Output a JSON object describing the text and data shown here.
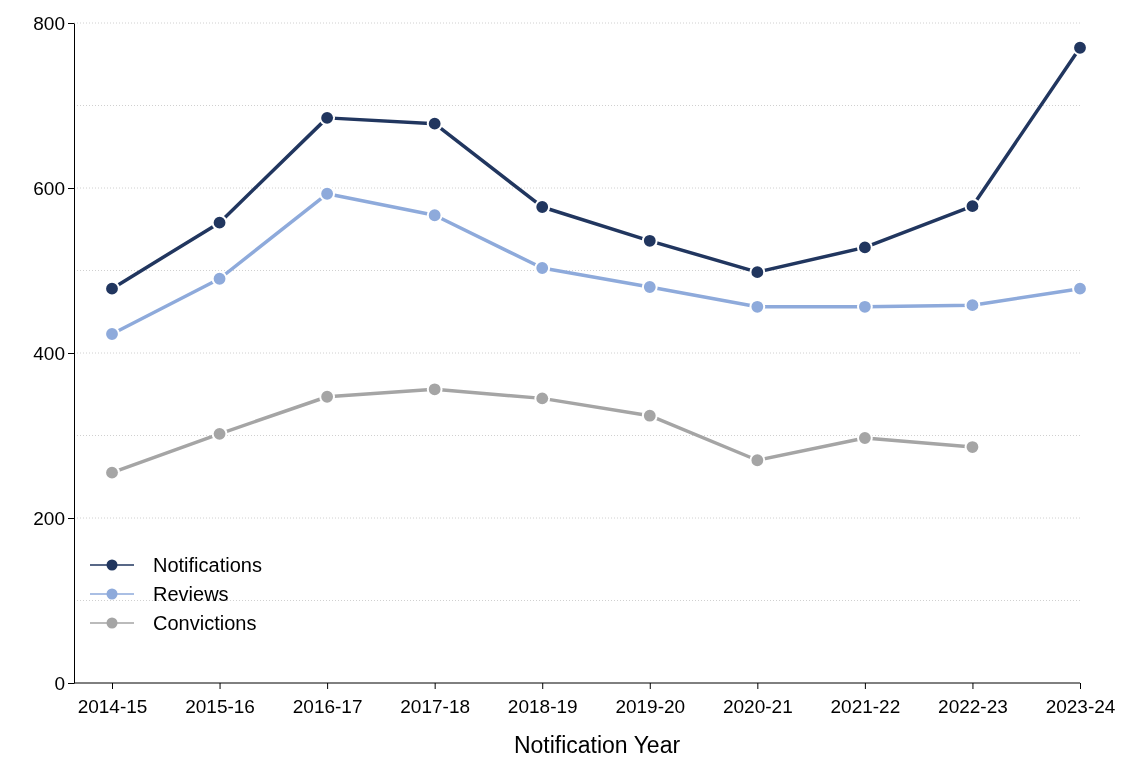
{
  "chart_data": {
    "type": "line",
    "xlabel": "Notification Year",
    "categories": [
      "2014-15",
      "2015-16",
      "2016-17",
      "2017-18",
      "2018-19",
      "2019-20",
      "2020-21",
      "2021-22",
      "2022-23",
      "2023-24"
    ],
    "series": [
      {
        "name": "Notifications",
        "color": "#21365f",
        "values": [
          478,
          558,
          685,
          678,
          577,
          536,
          498,
          528,
          578,
          770
        ]
      },
      {
        "name": "Reviews",
        "color": "#8eaadb",
        "values": [
          423,
          490,
          593,
          567,
          503,
          480,
          456,
          456,
          458,
          478
        ]
      },
      {
        "name": "Convictions",
        "color": "#a5a5a5",
        "values": [
          255,
          302,
          347,
          356,
          345,
          324,
          270,
          297,
          286,
          null
        ]
      }
    ],
    "ylim": [
      0,
      800
    ],
    "yticks": [
      0,
      {
        "value": 100,
        "label": null
      },
      200,
      {
        "value": 300,
        "label": null
      },
      400,
      {
        "value": 500,
        "label": null
      },
      600,
      {
        "value": 700,
        "label": null
      },
      800
    ],
    "grid": "y",
    "legend": "bottom left",
    "marker": "circle",
    "line_style": "solid"
  }
}
